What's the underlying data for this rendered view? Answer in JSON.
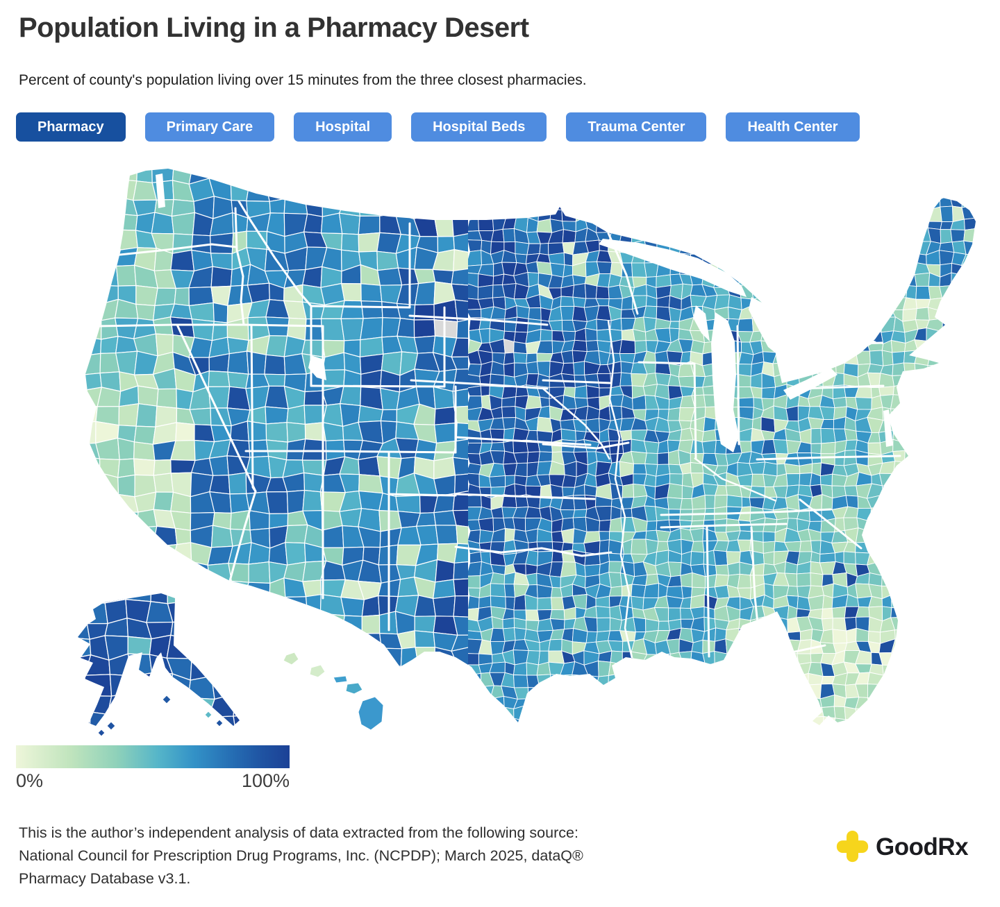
{
  "page": {
    "title": "Population Living in a Pharmacy Desert",
    "subtitle": "Percent of county's population living over 15 minutes from the three closest pharmacies."
  },
  "tabs": {
    "items": [
      {
        "label": "Pharmacy",
        "active": true
      },
      {
        "label": "Primary Care",
        "active": false
      },
      {
        "label": "Hospital",
        "active": false
      },
      {
        "label": "Hospital Beds",
        "active": false
      },
      {
        "label": "Trauma Center",
        "active": false
      },
      {
        "label": "Health Center",
        "active": false
      }
    ],
    "active_color": "#17509f",
    "inactive_color": "#4f8ce0"
  },
  "legend": {
    "min_label": "0%",
    "max_label": "100%"
  },
  "source": {
    "lines": [
      "This is the author’s independent analysis of data extracted from the following source:",
      "National Council for Prescription Drug Programs, Inc. (NCPDP); March 2025, dataQ®",
      "Pharmacy Database v3.1."
    ]
  },
  "logo": {
    "icon": "goodrx-cross-icon",
    "icon_color": "#f6d51c",
    "brand_bold": "Good",
    "brand_rest": "Rx"
  },
  "chart_data": {
    "type": "choropleth_map",
    "title": "Population Living in a Pharmacy Desert",
    "metric": "Percent of county's population living over 15 minutes from the three closest pharmacies",
    "geography": "United States counties (contiguous US, Alaska, Hawaii)",
    "active_layer": "Pharmacy",
    "layers": [
      "Pharmacy",
      "Primary Care",
      "Hospital",
      "Hospital Beds",
      "Trauma Center",
      "Health Center"
    ],
    "legend": {
      "min": 0,
      "max": 100,
      "unit": "%",
      "min_label": "0%",
      "max_label": "100%",
      "position": "bottom-left",
      "style": "continuous-gradient"
    },
    "color_scale": {
      "stops": [
        [
          0,
          "#eef6da"
        ],
        [
          0.2,
          "#c0e4bd"
        ],
        [
          0.37,
          "#8ed1ba"
        ],
        [
          0.52,
          "#55b5c9"
        ],
        [
          0.65,
          "#3392c7"
        ],
        [
          0.78,
          "#2670b5"
        ],
        [
          0.9,
          "#1f53a2"
        ],
        [
          1,
          "#1c4196"
        ]
      ]
    },
    "no_data_color": "#d9d9d9",
    "pattern_summary": [
      {
        "region": "Mountain West and Great Plains (MT, WY, ID, NV, UT, NM, Dakotas, NE, KS, west TX)",
        "approx_value_pct": "70-100"
      },
      {
        "region": "Pacific coast strip and California Central Valley",
        "approx_value_pct": "0-40"
      },
      {
        "region": "Upper Midwest (MN, WI, MI)",
        "approx_value_pct": "40-70"
      },
      {
        "region": "Corn Belt (IA, IL, IN, OH, MO)",
        "approx_value_pct": "25-60"
      },
      {
        "region": "Southeast (KY, TN, MS, AL, GA, Carolinas)",
        "approx_value_pct": "20-60"
      },
      {
        "region": "Florida peninsula",
        "approx_value_pct": "0-25"
      },
      {
        "region": "Northeast corridor and southern New England",
        "approx_value_pct": "5-35"
      },
      {
        "region": "Northern New England, upstate NY and Maine",
        "approx_value_pct": "50-80"
      },
      {
        "region": "Alaska",
        "approx_value_pct": "85-100"
      },
      {
        "region": "Hawaii",
        "approx_value_pct": "20-60"
      }
    ]
  }
}
